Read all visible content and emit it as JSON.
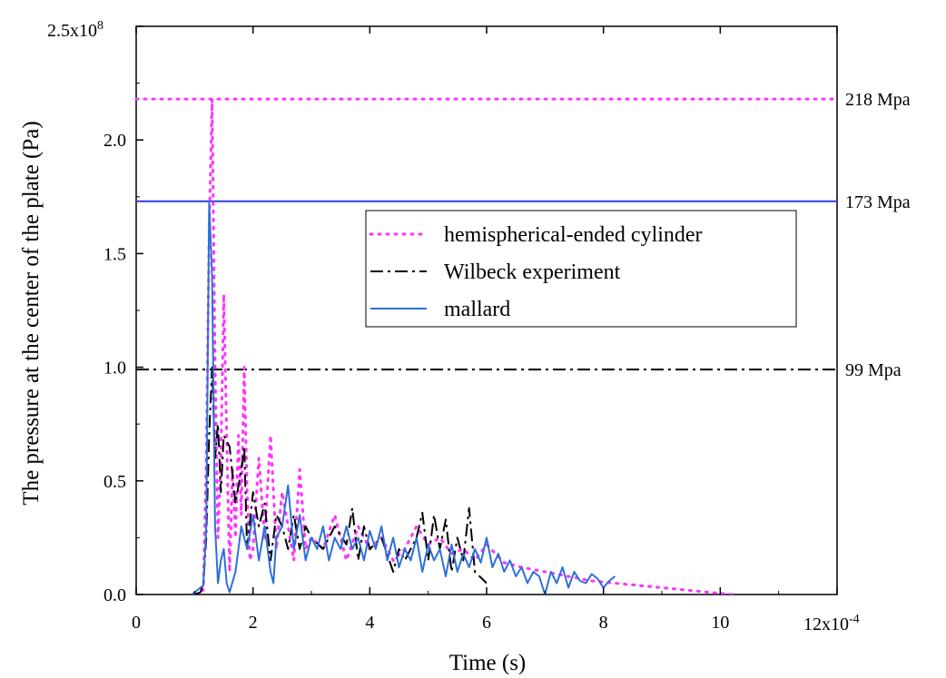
{
  "chart_data": {
    "type": "line",
    "title": "",
    "xlabel": "Time (s)",
    "ylabel": "The pressure at the center of the plate (Pa)",
    "xlim": [
      0,
      12
    ],
    "ylim": [
      0,
      2.5
    ],
    "x_tick_labels": [
      "0",
      "2",
      "4",
      "6",
      "8",
      "10",
      "12"
    ],
    "x_ticks": [
      0,
      2,
      4,
      6,
      8,
      10,
      12
    ],
    "y_tick_labels": [
      "0.0",
      "0.5",
      "1.0",
      "1.5",
      "2.0",
      "2.5"
    ],
    "y_ticks": [
      0,
      0.5,
      1.0,
      1.5,
      2.0,
      2.5
    ],
    "x_multiplier_text": "x10",
    "x_multiplier_exponent": "-4",
    "y_multiplier_text": "x10",
    "y_multiplier_exponent": "8",
    "grid": false,
    "legend_position": "upper-right",
    "reference_lines": [
      {
        "y": 2.18,
        "label": "218 Mpa",
        "style": "dotted",
        "color": "#ff33ff"
      },
      {
        "y": 1.73,
        "label": "173 Mpa",
        "style": "solid",
        "color": "#2b3fdb"
      },
      {
        "y": 0.99,
        "label": "99 Mpa",
        "style": "dashdot",
        "color": "#000000"
      }
    ],
    "series": [
      {
        "name": "hemispherical-ended cylinder",
        "color": "#ff33ff",
        "style": "dotted",
        "x": [
          1.0,
          1.15,
          1.2,
          1.25,
          1.3,
          1.35,
          1.4,
          1.45,
          1.5,
          1.55,
          1.6,
          1.65,
          1.7,
          1.75,
          1.8,
          1.85,
          1.9,
          1.95,
          2.0,
          2.1,
          2.2,
          2.3,
          2.4,
          2.5,
          2.6,
          2.7,
          2.8,
          2.9,
          3.0,
          3.2,
          3.4,
          3.6,
          3.8,
          4.0,
          4.2,
          4.4,
          4.6,
          4.8,
          5.0,
          5.2,
          5.4,
          5.6,
          5.8,
          6.0,
          6.3,
          6.6,
          7.0,
          7.4,
          7.8,
          8.2,
          8.6,
          9.0,
          9.4,
          9.8,
          10.2
        ],
        "y": [
          0.0,
          0.02,
          0.6,
          1.6,
          2.18,
          1.0,
          0.25,
          0.6,
          1.32,
          0.7,
          0.1,
          0.55,
          0.25,
          0.7,
          0.35,
          1.0,
          0.45,
          0.15,
          0.2,
          0.6,
          0.25,
          0.7,
          0.2,
          0.45,
          0.3,
          0.15,
          0.55,
          0.2,
          0.25,
          0.2,
          0.35,
          0.15,
          0.3,
          0.2,
          0.25,
          0.15,
          0.2,
          0.3,
          0.22,
          0.25,
          0.18,
          0.2,
          0.15,
          0.22,
          0.14,
          0.12,
          0.1,
          0.08,
          0.06,
          0.05,
          0.04,
          0.03,
          0.02,
          0.01,
          0.0
        ]
      },
      {
        "name": "Wilbeck experiment",
        "color": "#000000",
        "style": "dashdot",
        "x": [
          1.0,
          1.1,
          1.15,
          1.2,
          1.25,
          1.3,
          1.35,
          1.4,
          1.45,
          1.5,
          1.6,
          1.7,
          1.8,
          1.85,
          1.9,
          2.0,
          2.1,
          2.2,
          2.3,
          2.4,
          2.5,
          2.6,
          2.7,
          2.8,
          2.9,
          3.0,
          3.2,
          3.4,
          3.6,
          3.7,
          3.8,
          3.9,
          4.0,
          4.2,
          4.4,
          4.5,
          4.6,
          4.8,
          4.9,
          5.0,
          5.1,
          5.2,
          5.3,
          5.4,
          5.5,
          5.6,
          5.7,
          5.8,
          6.0
        ],
        "y": [
          0.0,
          0.01,
          0.05,
          0.25,
          0.7,
          1.0,
          0.6,
          0.75,
          0.45,
          0.7,
          0.65,
          0.4,
          0.55,
          0.65,
          0.2,
          0.45,
          0.3,
          0.4,
          0.15,
          0.35,
          0.3,
          0.2,
          0.35,
          0.2,
          0.3,
          0.25,
          0.2,
          0.3,
          0.22,
          0.38,
          0.15,
          0.3,
          0.2,
          0.25,
          0.1,
          0.2,
          0.15,
          0.25,
          0.36,
          0.15,
          0.35,
          0.2,
          0.33,
          0.1,
          0.25,
          0.15,
          0.38,
          0.1,
          0.05
        ]
      },
      {
        "name": "mallard",
        "color": "#2e6fd8",
        "style": "solid",
        "x": [
          0.95,
          1.0,
          1.05,
          1.1,
          1.15,
          1.2,
          1.25,
          1.3,
          1.35,
          1.4,
          1.45,
          1.5,
          1.55,
          1.6,
          1.7,
          1.8,
          1.9,
          2.0,
          2.1,
          2.2,
          2.3,
          2.35,
          2.4,
          2.5,
          2.6,
          2.7,
          2.8,
          2.9,
          3.0,
          3.1,
          3.2,
          3.3,
          3.4,
          3.5,
          3.6,
          3.7,
          3.8,
          3.9,
          4.0,
          4.1,
          4.2,
          4.3,
          4.4,
          4.5,
          4.6,
          4.7,
          4.8,
          4.9,
          5.0,
          5.1,
          5.2,
          5.3,
          5.4,
          5.5,
          5.6,
          5.7,
          5.8,
          5.9,
          6.0,
          6.1,
          6.2,
          6.3,
          6.4,
          6.5,
          6.6,
          6.7,
          6.8,
          6.9,
          7.0,
          7.1,
          7.2,
          7.3,
          7.4,
          7.5,
          7.6,
          7.7,
          7.8,
          7.9,
          8.0,
          8.1,
          8.2
        ],
        "y": [
          0.0,
          0.01,
          0.02,
          0.03,
          0.04,
          0.3,
          1.73,
          1.4,
          0.3,
          0.05,
          0.15,
          0.2,
          0.05,
          0.01,
          0.1,
          0.3,
          0.2,
          0.35,
          0.15,
          0.3,
          0.1,
          0.05,
          0.25,
          0.3,
          0.48,
          0.2,
          0.35,
          0.15,
          0.25,
          0.2,
          0.3,
          0.15,
          0.25,
          0.2,
          0.3,
          0.2,
          0.25,
          0.15,
          0.28,
          0.2,
          0.3,
          0.15,
          0.25,
          0.12,
          0.2,
          0.15,
          0.25,
          0.1,
          0.22,
          0.15,
          0.2,
          0.08,
          0.22,
          0.1,
          0.18,
          0.12,
          0.2,
          0.14,
          0.25,
          0.12,
          0.18,
          0.1,
          0.15,
          0.08,
          0.12,
          0.05,
          0.1,
          0.08,
          0.0,
          0.1,
          0.05,
          0.12,
          0.03,
          0.1,
          0.06,
          0.05,
          0.09,
          0.07,
          0.03,
          0.06,
          0.08
        ]
      }
    ]
  }
}
